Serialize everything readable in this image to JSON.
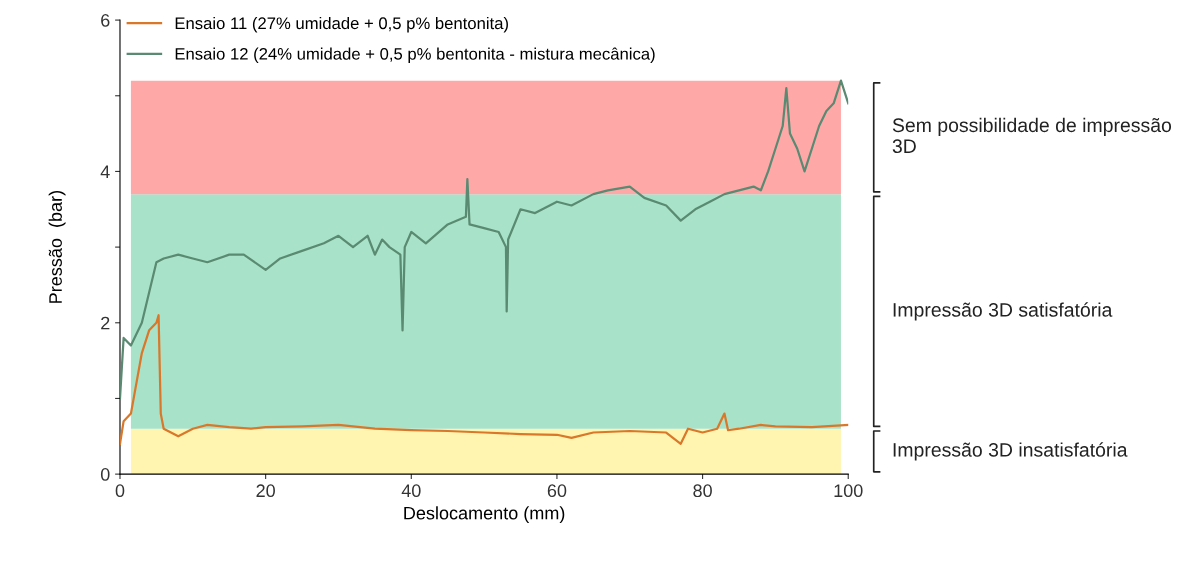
{
  "chart_data": {
    "type": "line",
    "xlabel": "Deslocamento (mm)",
    "ylabel": "Pressão  (bar)",
    "xlim": [
      0,
      100
    ],
    "xticks": [
      0,
      20,
      40,
      60,
      80,
      100
    ],
    "ylim": [
      0,
      6
    ],
    "yticks": [
      0,
      {
        "value": 1,
        "label": null
      },
      2,
      {
        "value": 3,
        "label": null
      },
      4,
      {
        "value": 5,
        "label": null
      },
      6
    ],
    "grid": false,
    "legend": "top left",
    "marker": "none",
    "line_style": "solid",
    "bands": [
      {
        "axis": "y",
        "from": 0,
        "to": 0.6,
        "label": "Impressão 3D insatisfatória",
        "color": "#fff5b0"
      },
      {
        "axis": "y",
        "from": 0.6,
        "to": 3.7,
        "label": "Impressão 3D satisfatória",
        "color": "#a8e2c8"
      },
      {
        "axis": "y",
        "from": 3.7,
        "to": 5.2,
        "label": "Sem possibilidade de impressão 3D",
        "color": "#ffa8a8"
      }
    ],
    "series": [
      {
        "name": "Ensaio 11 (27% umidade + 0,5 p% bentonita)",
        "color": "#d9782a",
        "x": [
          0,
          0.5,
          1.5,
          3,
          4,
          5,
          5.3,
          5.6,
          6,
          7,
          8,
          10,
          12,
          15,
          18,
          20,
          25,
          30,
          35,
          40,
          45,
          50,
          55,
          60,
          62,
          65,
          70,
          75,
          77,
          78,
          80,
          82,
          83,
          83.5,
          85,
          88,
          90,
          95,
          100
        ],
        "values": [
          0.4,
          0.7,
          0.8,
          1.6,
          1.9,
          2.0,
          2.1,
          0.8,
          0.6,
          0.55,
          0.5,
          0.6,
          0.65,
          0.62,
          0.6,
          0.62,
          0.63,
          0.65,
          0.6,
          0.58,
          0.57,
          0.55,
          0.53,
          0.52,
          0.48,
          0.55,
          0.57,
          0.55,
          0.4,
          0.6,
          0.55,
          0.6,
          0.8,
          0.58,
          0.6,
          0.65,
          0.63,
          0.62,
          0.65
        ]
      },
      {
        "name": "Ensaio 12 (24% umidade + 0,5 p% bentonita - mistura mecânica)",
        "color": "#5a8a72",
        "x": [
          0,
          0.5,
          1.5,
          3,
          4,
          5,
          6,
          8,
          10,
          12,
          15,
          17,
          20,
          22,
          25,
          28,
          30,
          32,
          34,
          35,
          36,
          37,
          38.5,
          38.8,
          39.1,
          40,
          42,
          45,
          47.5,
          47.7,
          48,
          50,
          52,
          53,
          53.1,
          53.3,
          55,
          57,
          60,
          62,
          65,
          67,
          70,
          72,
          75,
          77,
          79,
          81,
          83,
          85,
          87,
          88,
          89,
          90,
          91,
          91.5,
          92,
          93,
          94,
          95,
          96,
          97,
          98,
          99,
          100
        ],
        "values": [
          1.0,
          1.8,
          1.7,
          2.0,
          2.4,
          2.8,
          2.85,
          2.9,
          2.85,
          2.8,
          2.9,
          2.9,
          2.7,
          2.85,
          2.95,
          3.05,
          3.15,
          3.0,
          3.15,
          2.9,
          3.1,
          3.0,
          2.9,
          1.9,
          3.0,
          3.2,
          3.05,
          3.3,
          3.4,
          3.9,
          3.3,
          3.25,
          3.2,
          3.0,
          2.15,
          3.1,
          3.5,
          3.45,
          3.6,
          3.55,
          3.7,
          3.75,
          3.8,
          3.65,
          3.55,
          3.35,
          3.5,
          3.6,
          3.7,
          3.75,
          3.8,
          3.75,
          4.0,
          4.3,
          4.6,
          5.1,
          4.5,
          4.3,
          4.0,
          4.3,
          4.6,
          4.8,
          4.9,
          5.2,
          4.9
        ]
      }
    ]
  }
}
